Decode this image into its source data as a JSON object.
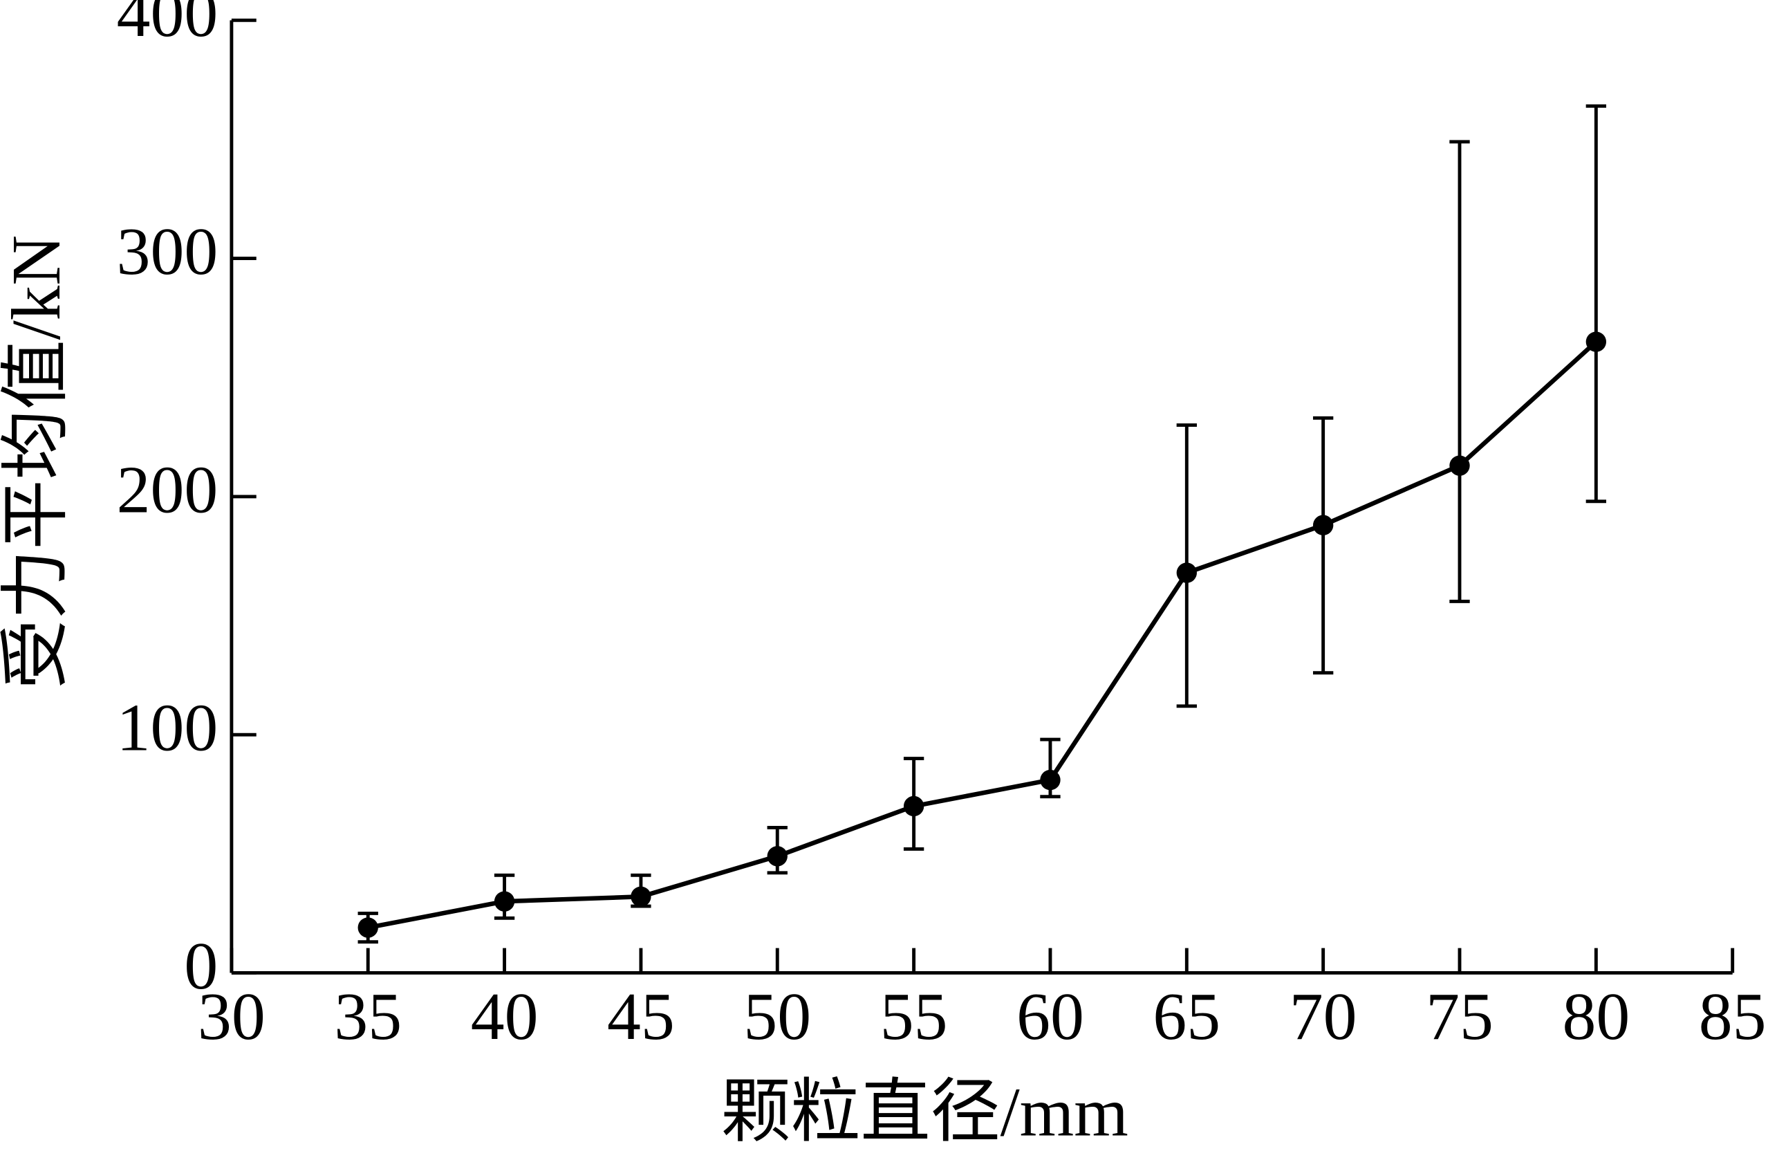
{
  "chart_data": {
    "type": "line",
    "x_label": "颗粒直径/mm",
    "y_label": "受力平均值/kN",
    "x": [
      35,
      40,
      45,
      50,
      55,
      60,
      65,
      70,
      75,
      80
    ],
    "values": [
      19,
      30,
      32,
      49,
      70,
      81,
      168,
      188,
      213,
      265
    ],
    "yerr_plus": [
      6,
      11,
      9,
      12,
      20,
      17,
      62,
      45,
      136,
      99
    ],
    "yerr_minus": [
      6,
      7,
      4,
      7,
      18,
      7,
      56,
      62,
      57,
      67
    ],
    "color": "#000000",
    "xlim": [
      30,
      85
    ],
    "xticks": [
      30,
      35,
      40,
      45,
      50,
      55,
      60,
      65,
      70,
      75,
      80,
      85
    ],
    "ylim": [
      0,
      400
    ],
    "yticks": [
      0,
      100,
      200,
      300,
      400
    ],
    "grid": false
  }
}
